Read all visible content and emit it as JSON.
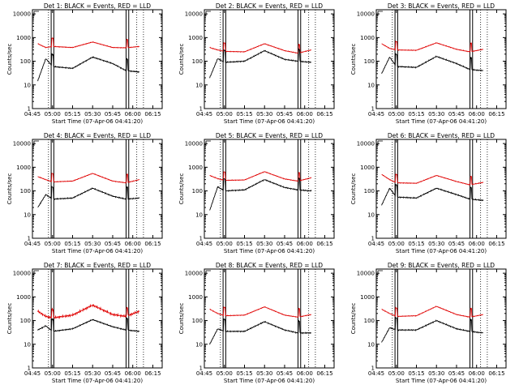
{
  "chart_data": [
    {
      "type": "line",
      "title": "Det 1: BLACK = Events, RED = LLD",
      "xlabel": "Start Time (07-Apr-06 04:41:20)",
      "ylabel": "Counts/sec",
      "x_ticks": [
        "04:45",
        "05:00",
        "05:15",
        "05:30",
        "05:45",
        "06:00",
        "06:15"
      ],
      "y_ticks": [
        "1",
        "10",
        "100",
        "1000",
        "10000"
      ],
      "ylim": [
        1,
        15000
      ],
      "ylog": true,
      "x": [
        "04:49",
        "04:55",
        "05:00",
        "05:15",
        "05:30",
        "05:45",
        "05:55",
        "06:05"
      ],
      "series": [
        {
          "name": "Events",
          "values": [
            15,
            130,
            60,
            50,
            150,
            80,
            40,
            35
          ]
        },
        {
          "name": "LLD",
          "values": [
            550,
            380,
            420,
            380,
            650,
            380,
            370,
            420
          ]
        }
      ]
    },
    {
      "type": "line",
      "title": "Det 2: BLACK = Events, RED = LLD",
      "xlabel": "Start Time (07-Apr-06 04:41:20)",
      "ylabel": "Counts/sec",
      "x_ticks": [
        "04:45",
        "05:00",
        "05:15",
        "05:30",
        "05:45",
        "06:00",
        "06:15"
      ],
      "y_ticks": [
        "1",
        "10",
        "100",
        "1000",
        "10000"
      ],
      "ylim": [
        1,
        15000
      ],
      "ylog": true,
      "x": [
        "04:49",
        "04:55",
        "05:00",
        "05:15",
        "05:30",
        "05:45",
        "05:55",
        "06:05"
      ],
      "series": [
        {
          "name": "Events",
          "values": [
            20,
            130,
            90,
            100,
            280,
            120,
            100,
            90
          ]
        },
        {
          "name": "LLD",
          "values": [
            380,
            300,
            260,
            250,
            550,
            280,
            220,
            300
          ]
        }
      ]
    },
    {
      "type": "line",
      "title": "Det 3: BLACK = Events, RED = LLD",
      "xlabel": "Start Time (07-Apr-06 04:41:20)",
      "ylabel": "Counts/sec",
      "x_ticks": [
        "04:45",
        "05:00",
        "05:15",
        "05:30",
        "05:45",
        "06:00",
        "06:15"
      ],
      "y_ticks": [
        "1",
        "10",
        "100",
        "1000",
        "10000"
      ],
      "ylim": [
        1,
        15000
      ],
      "ylog": true,
      "x": [
        "04:49",
        "04:55",
        "05:00",
        "05:15",
        "05:30",
        "05:45",
        "05:55",
        "06:05"
      ],
      "series": [
        {
          "name": "Events",
          "values": [
            30,
            150,
            60,
            55,
            160,
            80,
            45,
            40
          ]
        },
        {
          "name": "LLD",
          "values": [
            550,
            350,
            300,
            290,
            600,
            320,
            250,
            320
          ]
        }
      ]
    },
    {
      "type": "line",
      "title": "Det 4: BLACK = Events, RED = LLD",
      "xlabel": "Start Time (07-Apr-06 04:41:20)",
      "ylabel": "Counts/sec",
      "x_ticks": [
        "04:45",
        "05:00",
        "05:15",
        "05:30",
        "05:45",
        "06:00",
        "06:15"
      ],
      "y_ticks": [
        "1",
        "10",
        "100",
        "1000",
        "10000"
      ],
      "ylim": [
        1,
        15000
      ],
      "ylog": true,
      "x": [
        "04:49",
        "04:55",
        "05:00",
        "05:15",
        "05:30",
        "05:45",
        "05:55",
        "06:05"
      ],
      "series": [
        {
          "name": "Events",
          "values": [
            20,
            70,
            45,
            50,
            130,
            60,
            45,
            50
          ]
        },
        {
          "name": "LLD",
          "values": [
            400,
            300,
            240,
            260,
            550,
            260,
            220,
            300
          ]
        }
      ]
    },
    {
      "type": "line",
      "title": "Det 5: BLACK = Events, RED = LLD",
      "xlabel": "Start Time (07-Apr-06 04:41:20)",
      "ylabel": "Counts/sec",
      "x_ticks": [
        "04:45",
        "05:00",
        "05:15",
        "05:30",
        "05:45",
        "06:00",
        "06:15"
      ],
      "y_ticks": [
        "1",
        "10",
        "100",
        "1000",
        "10000"
      ],
      "ylim": [
        1,
        15000
      ],
      "ylog": true,
      "x": [
        "04:49",
        "04:55",
        "05:00",
        "05:15",
        "05:30",
        "05:45",
        "05:55",
        "06:05"
      ],
      "series": [
        {
          "name": "Events",
          "values": [
            15,
            150,
            100,
            110,
            300,
            140,
            110,
            100
          ]
        },
        {
          "name": "LLD",
          "values": [
            450,
            330,
            280,
            290,
            650,
            320,
            260,
            360
          ]
        }
      ]
    },
    {
      "type": "line",
      "title": "Det 6: BLACK = Events, RED = LLD",
      "xlabel": "Start Time (07-Apr-06 04:41:20)",
      "ylabel": "Counts/sec",
      "x_ticks": [
        "04:45",
        "05:00",
        "05:15",
        "05:30",
        "05:45",
        "06:00",
        "06:15"
      ],
      "y_ticks": [
        "1",
        "10",
        "100",
        "1000",
        "10000"
      ],
      "ylim": [
        1,
        15000
      ],
      "ylog": true,
      "x": [
        "04:49",
        "04:55",
        "05:00",
        "05:15",
        "05:30",
        "05:45",
        "05:55",
        "06:05"
      ],
      "series": [
        {
          "name": "Events",
          "values": [
            25,
            130,
            55,
            50,
            130,
            70,
            45,
            40
          ]
        },
        {
          "name": "LLD",
          "values": [
            500,
            300,
            220,
            210,
            450,
            250,
            180,
            230
          ]
        }
      ]
    },
    {
      "type": "line",
      "title": "Det 7: BLACK = Events, RED = LLD",
      "xlabel": "Start Time (07-Apr-06 04:41:20)",
      "ylabel": "Counts/sec",
      "x_ticks": [
        "04:45",
        "05:00",
        "05:15",
        "05:30",
        "05:45",
        "06:00",
        "06:15"
      ],
      "y_ticks": [
        "1",
        "10",
        "100",
        "1000",
        "10000"
      ],
      "ylim": [
        1,
        15000
      ],
      "ylog": true,
      "x": [
        "04:49",
        "04:55",
        "05:00",
        "05:15",
        "05:30",
        "05:45",
        "05:55",
        "06:05"
      ],
      "series": [
        {
          "name": "Events",
          "values": [
            40,
            60,
            35,
            45,
            110,
            55,
            40,
            35
          ]
        },
        {
          "name": "LLD",
          "values": [
            250,
            150,
            130,
            170,
            450,
            180,
            150,
            250
          ]
        }
      ]
    },
    {
      "type": "line",
      "title": "Det 8: BLACK = Events, RED = LLD",
      "xlabel": "Start Time (07-Apr-06 04:41:20)",
      "ylabel": "Counts/sec",
      "x_ticks": [
        "04:45",
        "05:00",
        "05:15",
        "05:30",
        "05:45",
        "06:00",
        "06:15"
      ],
      "y_ticks": [
        "1",
        "10",
        "100",
        "1000",
        "10000"
      ],
      "ylim": [
        1,
        15000
      ],
      "ylog": true,
      "x": [
        "04:49",
        "04:55",
        "05:00",
        "05:15",
        "05:30",
        "05:45",
        "05:55",
        "06:05"
      ],
      "series": [
        {
          "name": "Events",
          "values": [
            10,
            45,
            35,
            35,
            90,
            40,
            30,
            30
          ]
        },
        {
          "name": "LLD",
          "values": [
            300,
            200,
            160,
            170,
            380,
            170,
            140,
            180
          ]
        }
      ]
    },
    {
      "type": "line",
      "title": "Det 9: BLACK = Events, RED = LLD",
      "xlabel": "Start Time (07-Apr-06 04:41:20)",
      "ylabel": "Counts/sec",
      "x_ticks": [
        "04:45",
        "05:00",
        "05:15",
        "05:30",
        "05:45",
        "06:00",
        "06:15"
      ],
      "y_ticks": [
        "1",
        "10",
        "100",
        "1000",
        "10000"
      ],
      "ylim": [
        1,
        15000
      ],
      "ylog": true,
      "x": [
        "04:49",
        "04:55",
        "05:00",
        "05:15",
        "05:30",
        "05:45",
        "05:55",
        "06:05"
      ],
      "series": [
        {
          "name": "Events",
          "values": [
            12,
            50,
            40,
            40,
            100,
            45,
            35,
            30
          ]
        },
        {
          "name": "LLD",
          "values": [
            300,
            200,
            150,
            160,
            400,
            180,
            140,
            180
          ]
        }
      ]
    }
  ],
  "colors": {
    "events": "#000000",
    "lld": "#e00000",
    "background": "#ffffff"
  }
}
